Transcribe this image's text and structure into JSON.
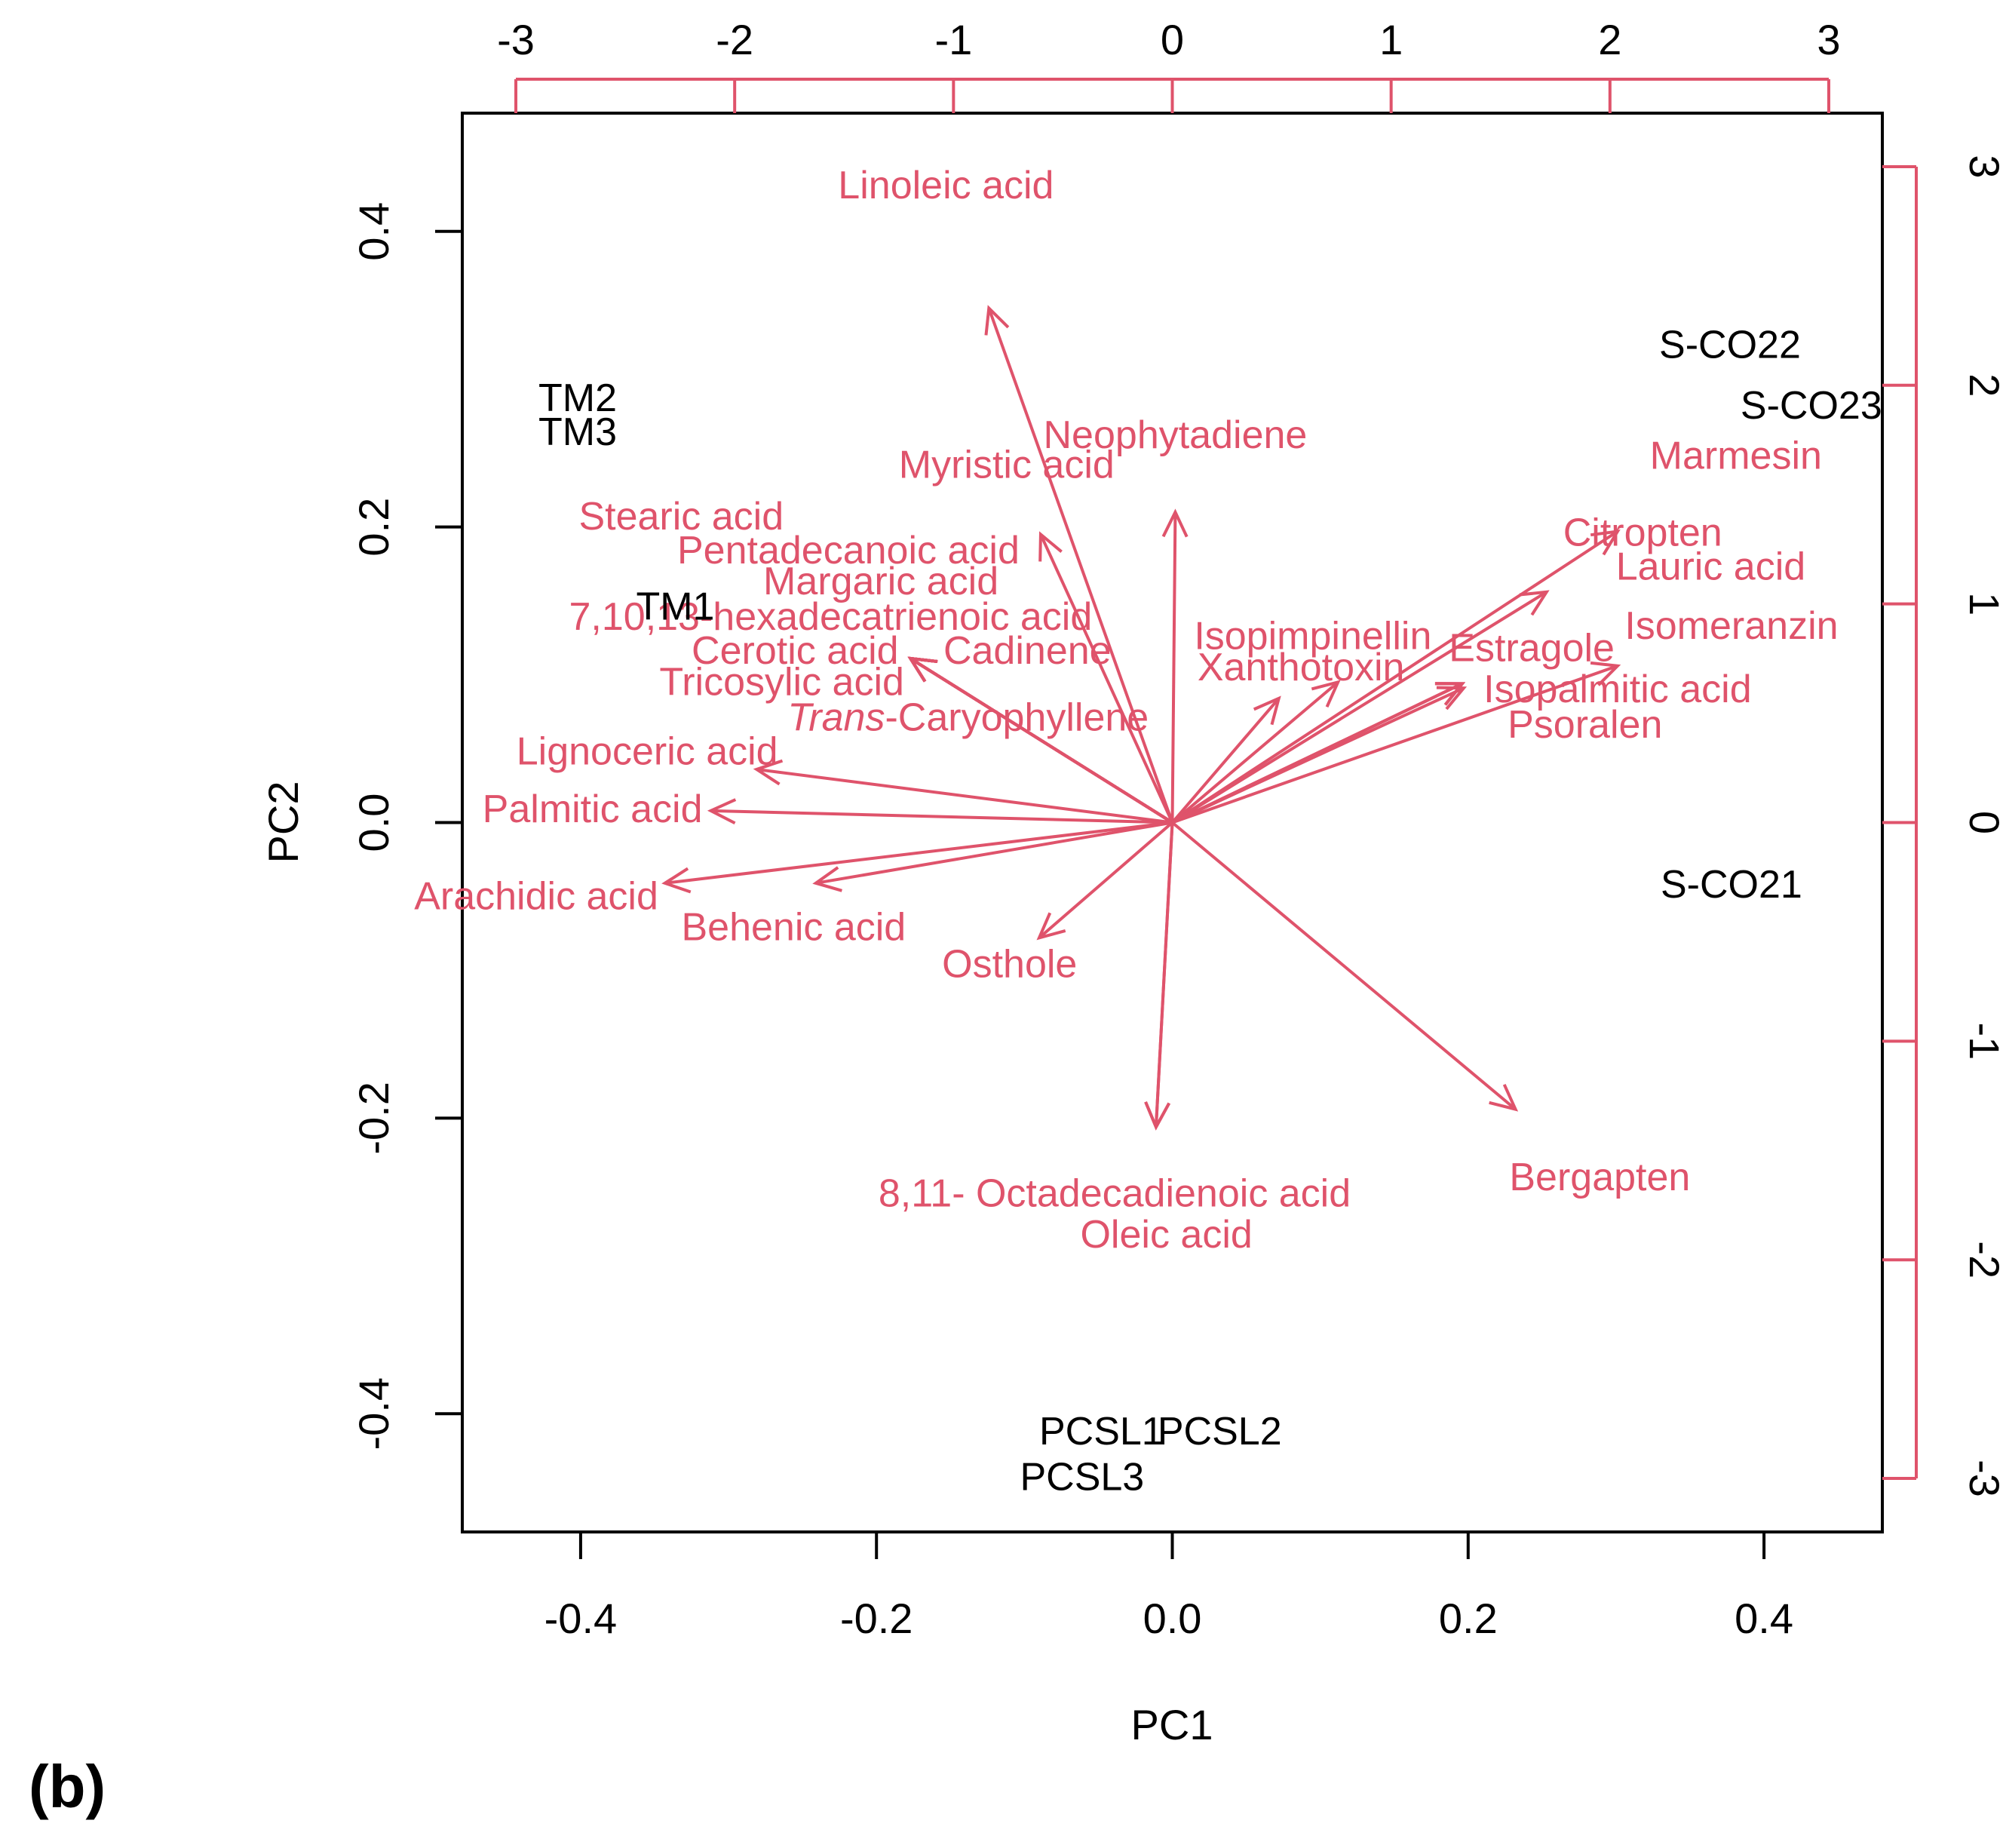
{
  "panel_label": "(b)",
  "colors": {
    "variables": "#DF536B",
    "samples": "#000000",
    "axis": "#000000"
  },
  "chart_data": {
    "type": "scatter",
    "subtype": "pca-biplot",
    "xlabel": "PC1",
    "ylabel": "PC2",
    "xlim": [
      -0.48,
      0.48
    ],
    "ylim": [
      -0.48,
      0.48
    ],
    "x_ticks": [
      -0.4,
      -0.2,
      0.0,
      0.2,
      0.4
    ],
    "x_tick_labels": [
      "-0.4",
      "-0.2",
      "0.0",
      "0.2",
      "0.4"
    ],
    "y_ticks": [
      -0.4,
      -0.2,
      0.0,
      0.2,
      0.4
    ],
    "y_tick_labels": [
      "-0.4",
      "-0.2",
      "0.0",
      "0.2",
      "0.4"
    ],
    "top_ticks": [
      -3,
      -2,
      -1,
      0,
      1,
      2,
      3
    ],
    "top_tick_labels": [
      "-3",
      "-2",
      "-1",
      "0",
      "1",
      "2",
      "3"
    ],
    "right_ticks": [
      -3,
      -2,
      -1,
      0,
      1,
      2,
      3
    ],
    "right_tick_labels": [
      "-3",
      "-2",
      "-1",
      "0",
      "1",
      "2",
      "3"
    ],
    "secondary_scale": 6.76,
    "samples": [
      {
        "name": "TM2",
        "pc1": -0.402,
        "pc2": 0.287
      },
      {
        "name": "TM3",
        "pc1": -0.402,
        "pc2": 0.264
      },
      {
        "name": "TM1",
        "pc1": -0.336,
        "pc2": 0.146
      },
      {
        "name": "S-CO22",
        "pc1": 0.377,
        "pc2": 0.323
      },
      {
        "name": "S-CO23",
        "pc1": 0.432,
        "pc2": 0.282
      },
      {
        "name": "S-CO21",
        "pc1": 0.378,
        "pc2": -0.042
      },
      {
        "name": "PCSL1",
        "pc1": -0.048,
        "pc2": -0.412
      },
      {
        "name": "PCSL2",
        "pc1": 0.032,
        "pc2": -0.412
      },
      {
        "name": "PCSL3",
        "pc1": -0.061,
        "pc2": -0.443
      }
    ],
    "loadings": [
      {
        "name": "Linoleic acid",
        "pc1": -0.124,
        "pc2": 0.348,
        "label_pc1": -0.153,
        "label_pc2": 0.431
      },
      {
        "name": "Neophytadiene",
        "pc1": 0.002,
        "pc2": 0.21,
        "label_pc1": 0.002,
        "label_pc2": 0.262
      },
      {
        "name": "Myristic acid",
        "pc1": -0.089,
        "pc2": 0.195,
        "label_pc1": -0.112,
        "label_pc2": 0.242
      },
      {
        "name": "Stearic acid",
        "pc1": -0.177,
        "pc2": 0.111,
        "label_pc1": -0.332,
        "label_pc2": 0.207
      },
      {
        "name": "Pentadecanoic acid",
        "pc1": -0.177,
        "pc2": 0.111,
        "label_pc1": -0.219,
        "label_pc2": 0.184
      },
      {
        "name": "Margaric acid",
        "pc1": -0.177,
        "pc2": 0.111,
        "label_pc1": -0.197,
        "label_pc2": 0.163
      },
      {
        "name": "7,10,13-hexadecatrienoic acid",
        "pc1": -0.177,
        "pc2": 0.111,
        "label_pc1": -0.231,
        "label_pc2": 0.139
      },
      {
        "name": "Cerotic acid",
        "pc1": -0.177,
        "pc2": 0.111,
        "label_pc1": -0.255,
        "label_pc2": 0.116
      },
      {
        "name": "Cadinene",
        "pc1": -0.177,
        "pc2": 0.111,
        "label_pc1": -0.098,
        "label_pc2": 0.116
      },
      {
        "name": "Tricosylic acid",
        "pc1": -0.177,
        "pc2": 0.111,
        "label_pc1": -0.264,
        "label_pc2": 0.095
      },
      {
        "name": "Trans-Caryophyllene",
        "pc1": -0.177,
        "pc2": 0.111,
        "label_pc1": -0.138,
        "label_pc2": 0.071
      },
      {
        "name": "Lignoceric acid",
        "pc1": -0.281,
        "pc2": 0.036,
        "label_pc1": -0.355,
        "label_pc2": 0.048
      },
      {
        "name": "Palmitic acid",
        "pc1": -0.312,
        "pc2": 0.008,
        "label_pc1": -0.392,
        "label_pc2": 0.009
      },
      {
        "name": "Arachidic acid",
        "pc1": -0.343,
        "pc2": -0.041,
        "label_pc1": -0.43,
        "label_pc2": -0.05
      },
      {
        "name": "Behenic acid",
        "pc1": -0.241,
        "pc2": -0.041,
        "label_pc1": -0.256,
        "label_pc2": -0.071
      },
      {
        "name": "Osthole",
        "pc1": -0.09,
        "pc2": -0.078,
        "label_pc1": -0.11,
        "label_pc2": -0.096
      },
      {
        "name": "8,11- Octadecadienoic acid",
        "pc1": -0.011,
        "pc2": -0.206,
        "label_pc1": -0.039,
        "label_pc2": -0.251
      },
      {
        "name": "Oleic acid",
        "pc1": -0.011,
        "pc2": -0.206,
        "label_pc1": -0.004,
        "label_pc2": -0.279
      },
      {
        "name": "Bergapten",
        "pc1": 0.232,
        "pc2": -0.194,
        "label_pc1": 0.289,
        "label_pc2": -0.24
      },
      {
        "name": "Isopimpinellin",
        "pc1": 0.072,
        "pc2": 0.084,
        "label_pc1": 0.095,
        "label_pc2": 0.126
      },
      {
        "name": "Xanthotoxin",
        "pc1": 0.112,
        "pc2": 0.095,
        "label_pc1": 0.087,
        "label_pc2": 0.105
      },
      {
        "name": "Estragole",
        "pc1": 0.197,
        "pc2": 0.091,
        "label_pc1": 0.243,
        "label_pc2": 0.118
      },
      {
        "name": "Citropten",
        "pc1": 0.301,
        "pc2": 0.197,
        "label_pc1": 0.318,
        "label_pc2": 0.196
      },
      {
        "name": "Lauric acid",
        "pc1": 0.253,
        "pc2": 0.156,
        "label_pc1": 0.364,
        "label_pc2": 0.173
      },
      {
        "name": "Marmesin",
        "pc1": 0.196,
        "pc2": 0.094,
        "label_pc1": 0.381,
        "label_pc2": 0.248
      },
      {
        "name": "Isomeranzin",
        "pc1": 0.301,
        "pc2": 0.106,
        "label_pc1": 0.378,
        "label_pc2": 0.133
      },
      {
        "name": "Isopalmitic acid",
        "pc1": 0.196,
        "pc2": 0.094,
        "label_pc1": 0.301,
        "label_pc2": 0.09
      },
      {
        "name": "Psoralen",
        "pc1": 0.196,
        "pc2": 0.094,
        "label_pc1": 0.279,
        "label_pc2": 0.066
      }
    ]
  }
}
